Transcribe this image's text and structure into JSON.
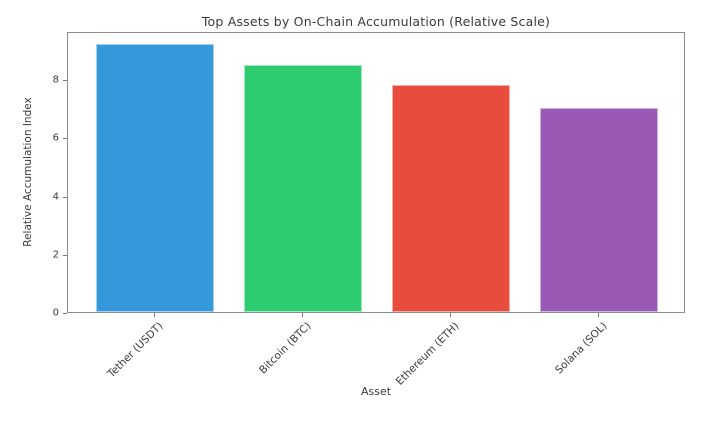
{
  "chart_data": {
    "type": "bar",
    "title": "Top Assets by On-Chain Accumulation (Relative Scale)",
    "xlabel": "Asset",
    "ylabel": "Relative Accumulation Index",
    "categories": [
      "Tether (USDT)",
      "Bitcoin (BTC)",
      "Ethereum (ETH)",
      "Solana (SOL)"
    ],
    "values": [
      9.2,
      8.5,
      7.8,
      7.0
    ],
    "bar_colors": [
      "#3498db",
      "#2ecc71",
      "#e74c3c",
      "#9b59b6"
    ],
    "ylim": [
      0,
      9.66
    ],
    "yticks": [
      0,
      2,
      4,
      6,
      8
    ],
    "grid": false,
    "legend": "none",
    "background_color": "#ffffff",
    "spine_color": "#8c8c8c",
    "text_color": "#3a3a3a"
  }
}
